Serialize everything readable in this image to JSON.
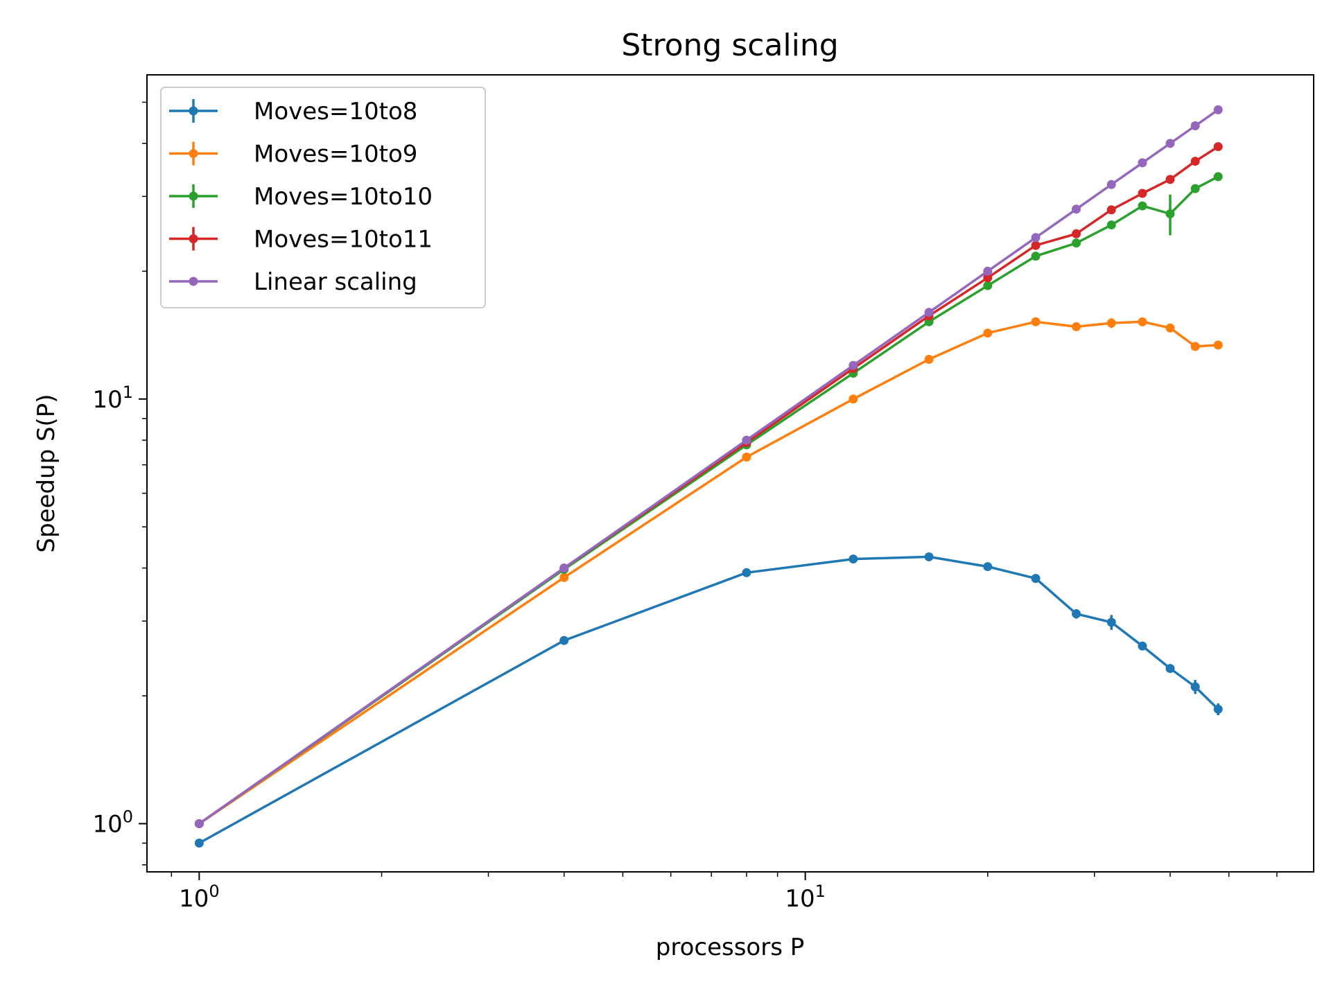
{
  "chart_data": {
    "type": "line",
    "title": "Strong scaling",
    "xlabel": "processors P",
    "ylabel": "Speedup S(P)",
    "xscale": "log",
    "yscale": "log",
    "xlim": [
      0.82,
      69
    ],
    "ylim": [
      0.77,
      58
    ],
    "grid": false,
    "legend_position": "top-left",
    "x_ticks": [
      {
        "value": 1,
        "base": "10",
        "exp": "0"
      },
      {
        "value": 10,
        "base": "10",
        "exp": "1"
      }
    ],
    "y_ticks": [
      {
        "value": 1,
        "base": "10",
        "exp": "0"
      },
      {
        "value": 10,
        "base": "10",
        "exp": "1"
      }
    ],
    "x": [
      1,
      4,
      8,
      12,
      16,
      20,
      24,
      28,
      32,
      36,
      40,
      44,
      48
    ],
    "series": [
      {
        "name": "Moves=10to8",
        "color": "#1f77b4",
        "values": [
          0.9,
          2.7,
          3.9,
          4.2,
          4.25,
          4.03,
          3.78,
          3.12,
          2.98,
          2.62,
          2.32,
          2.1,
          1.86
        ],
        "errors": [
          0,
          0,
          0,
          0,
          0,
          0,
          0,
          0.08,
          0.12,
          0,
          0,
          0.08,
          0.06
        ]
      },
      {
        "name": "Moves=10to9",
        "color": "#ff7f0e",
        "values": [
          1.0,
          3.8,
          7.3,
          10.0,
          12.4,
          14.3,
          15.2,
          14.8,
          15.1,
          15.2,
          14.7,
          13.3,
          13.4
        ],
        "errors": [
          0,
          0,
          0,
          0,
          0,
          0,
          0,
          0,
          0.4,
          0,
          0,
          0,
          0
        ]
      },
      {
        "name": "Moves=10to10",
        "color": "#2ca02c",
        "values": [
          1.0,
          3.97,
          7.8,
          11.5,
          15.2,
          18.5,
          21.7,
          23.3,
          25.7,
          28.5,
          27.3,
          31.3,
          33.4
        ],
        "errors": [
          0,
          0,
          0,
          0,
          0,
          0,
          0,
          0,
          0,
          0,
          3.0,
          0,
          0
        ]
      },
      {
        "name": "Moves=10to11",
        "color": "#d62728",
        "values": [
          1.0,
          4.0,
          7.9,
          11.8,
          15.7,
          19.3,
          23.0,
          24.5,
          27.9,
          30.5,
          32.9,
          36.3,
          39.3
        ],
        "errors": [
          0,
          0,
          0,
          0,
          0,
          0,
          0,
          0,
          0,
          0,
          0,
          0,
          0
        ]
      },
      {
        "name": "Linear scaling",
        "color": "#9467bd",
        "values": [
          1,
          4,
          8,
          12,
          16,
          20,
          24,
          28,
          32,
          36,
          40,
          44,
          48
        ],
        "errors": []
      }
    ]
  }
}
